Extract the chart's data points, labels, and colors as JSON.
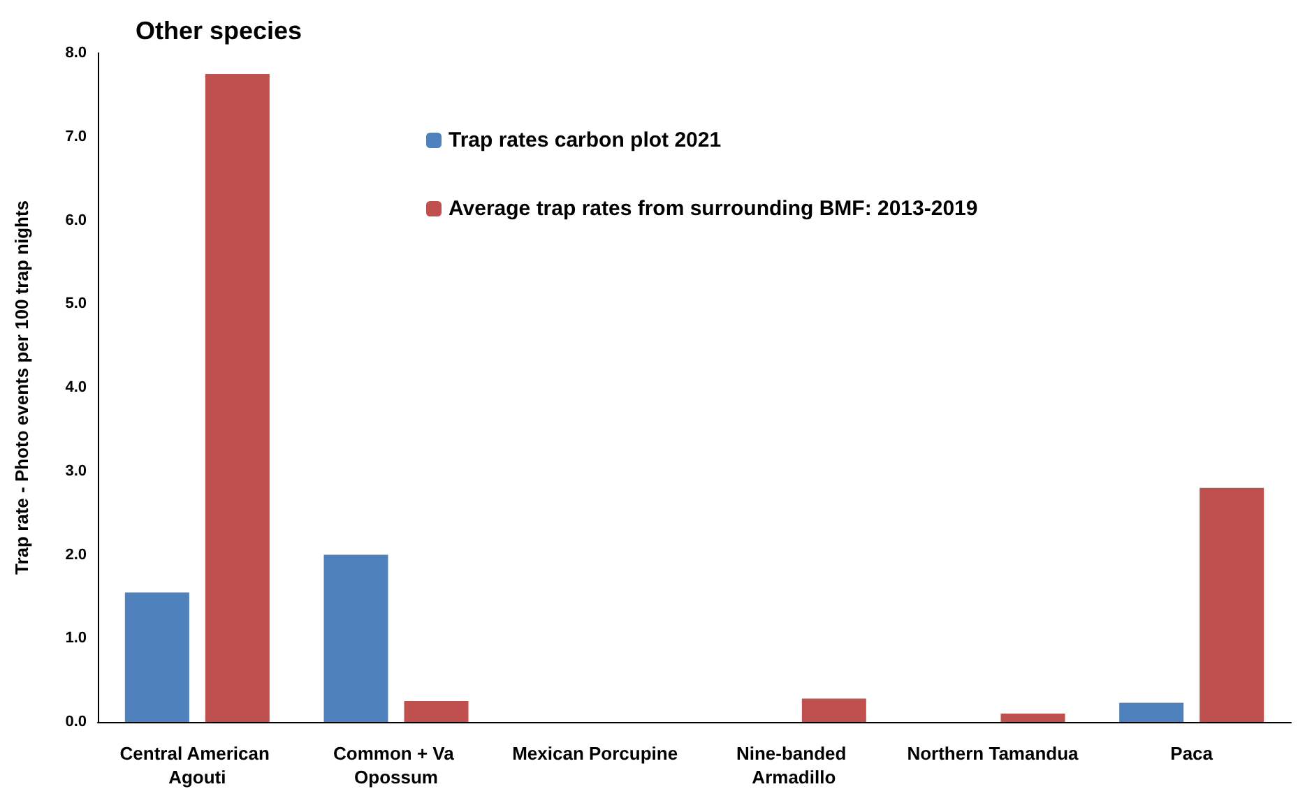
{
  "chart_data": {
    "type": "bar",
    "title": "Other species",
    "ylabel": "Trap rate - Photo events per 100 trap nights",
    "categories": [
      "Central American Agouti",
      "Common + Va Opossum",
      "Mexican Porcupine",
      "Nine-banded Armadillo",
      "Northern Tamandua",
      "Paca"
    ],
    "series": [
      {
        "name": "Trap rates carbon plot 2021",
        "color": "#4f81bd",
        "values": [
          1.55,
          2.0,
          0,
          0,
          0,
          0.23
        ]
      },
      {
        "name": "Average trap rates from surrounding BMF: 2013-2019",
        "color": "#c0504d",
        "values": [
          7.75,
          0.25,
          0,
          0.28,
          0.1,
          2.8
        ]
      }
    ],
    "ylim": [
      0,
      8
    ],
    "yticks": [
      {
        "value": 0,
        "label": "0.0"
      },
      {
        "value": 1,
        "label": "1.0"
      },
      {
        "value": 2,
        "label": "2.0"
      },
      {
        "value": 3,
        "label": "3.0"
      },
      {
        "value": 4,
        "label": "4.0"
      },
      {
        "value": 5,
        "label": "5.0"
      },
      {
        "value": 6,
        "label": "6.0"
      },
      {
        "value": 7,
        "label": "7.0"
      },
      {
        "value": 8,
        "label": "8.0"
      }
    ],
    "grid": false,
    "legend": "top"
  }
}
